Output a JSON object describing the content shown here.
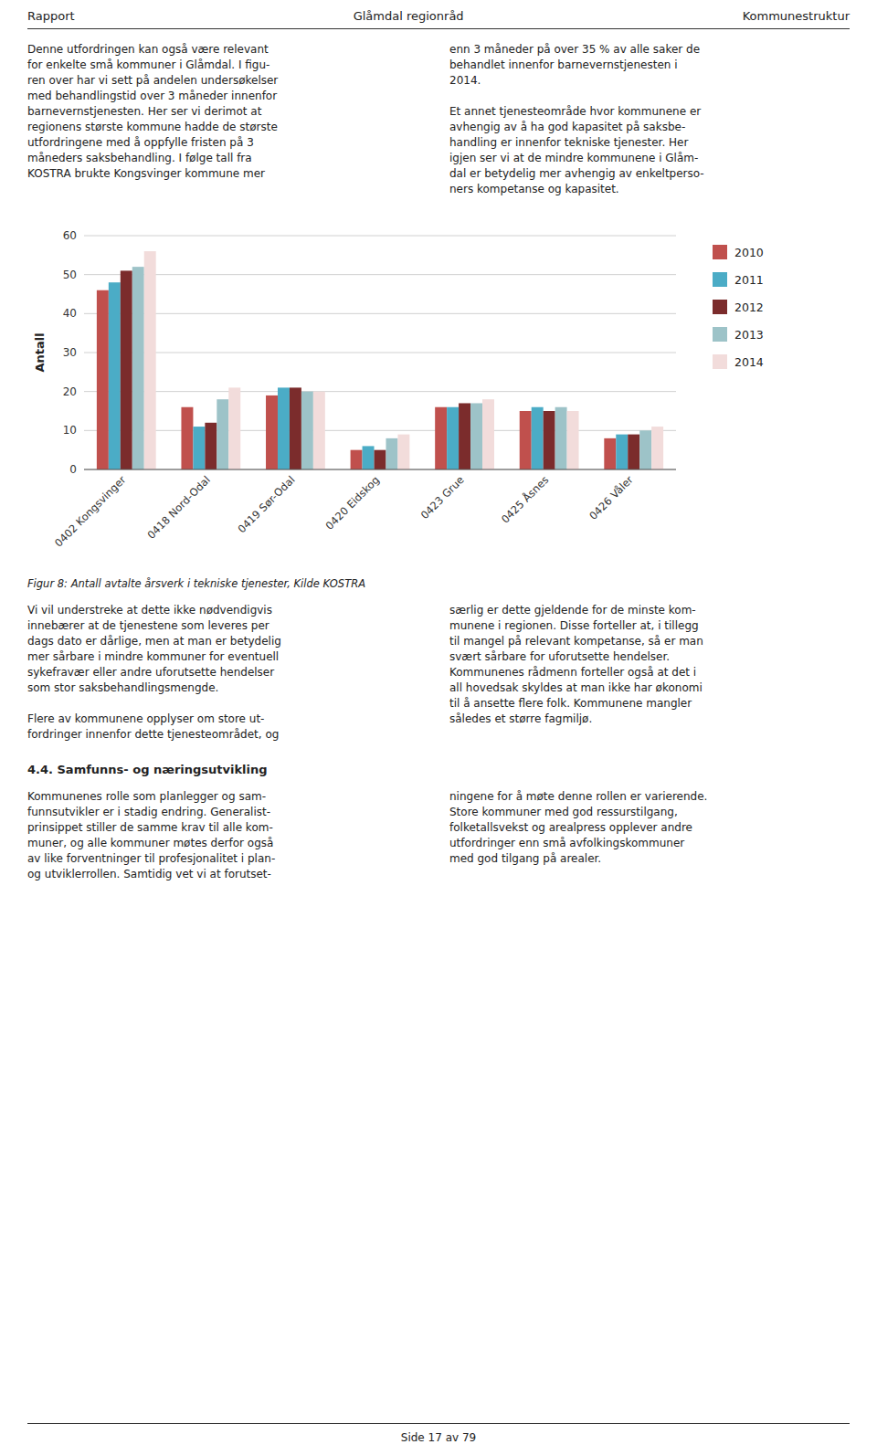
{
  "page": {
    "header": [
      "Rapport",
      "Glåmdal regionråd",
      "Kommunestruktur"
    ],
    "intro": {
      "left": [
        [
          "Denne utfordringen kan også være relevant",
          "for enkelte små kommuner i Glåmdal. I figu-",
          "ren over har vi sett på andelen undersøkelser",
          "med behandlingstid over 3 måneder innenfor",
          "barnevernstjenesten. Her ser vi derimot at",
          "regionens største kommune hadde de største",
          "utfordringene med å oppfylle fristen på 3",
          "måneders saksbehandling. I følge tall fra",
          "KOSTRA brukte Kongsvinger kommune mer"
        ]
      ],
      "right": [
        [
          "enn 3 måneder på over 35 % av alle saker de",
          "behandlet innenfor barnevernstjenesten i",
          "2014."
        ],
        [
          "Et annet tjenesteområde hvor kommunene er",
          "avhengig av å ha god kapasitet på saksbe-",
          "handling er innenfor tekniske tjenester. Her",
          "igjen ser vi at de mindre kommunene i Glåm-",
          "dal er betydelig mer avhengig av enkeltperso-",
          "ners kompetanse og kapasitet."
        ]
      ]
    },
    "body": {
      "left": [
        [
          "Vi vil understreke at dette ikke nødvendigvis",
          "innebærer at de tjenestene som leveres per",
          "dags dato er dårlige, men at man er betydelig",
          "mer sårbare i mindre kommuner for eventuell",
          "sykefravær eller andre uforutsette hendelser",
          "som stor saksbehandlingsmengde."
        ],
        [
          "Flere av kommunene opplyser om store ut-",
          "fordringer innenfor dette tjenesteområdet, og"
        ]
      ],
      "right": [
        [
          "særlig er dette gjeldende for de minste kom-",
          "munene i regionen. Disse forteller at, i tillegg",
          "til mangel på relevant kompetanse, så er man",
          "svært sårbare for uforutsette hendelser.",
          "Kommunenes rådmenn forteller også at det i",
          "all hovedsak skyldes at man ikke har økonomi",
          "til å ansette flere folk. Kommunene mangler",
          "således et større fagmiljø."
        ]
      ]
    },
    "section_title": "4.4.    Samfunns- og næringsutvikling",
    "section": {
      "left": [
        [
          "Kommunenes rolle som planlegger og sam-",
          "funnsutvikler er i stadig endring. Generalist-",
          "prinsippet stiller de samme krav til alle kom-",
          "muner, og alle kommuner møtes derfor også",
          "av like forventninger til profesjonalitet i plan-",
          "og utviklerrollen. Samtidig vet vi at forutset-"
        ]
      ],
      "right": [
        [
          "ningene for å møte denne rollen er varierende.",
          "Store kommuner med god ressurstilgang,",
          "folketallsvekst og arealpress opplever andre",
          "utfordringer enn små avfolkingskommuner",
          "med god tilgang på arealer."
        ]
      ]
    },
    "footer": "Side 17 av 79"
  },
  "chart_data": {
    "type": "bar",
    "title": "Figur 8: Antall avtalte årsverk i tekniske tjenester, Kilde KOSTRA",
    "y_label": "Antall",
    "categories": [
      "0402 Kongsvinger",
      "0418 Nord-Odal",
      "0419 Sør-Odal",
      "0420 Eidskog",
      "0423 Grue",
      "0425 Åsnes",
      "0426 Våler"
    ],
    "series": [
      {
        "name": "2010",
        "color": "#C0504D",
        "values": [
          46,
          16,
          19,
          5,
          16,
          15,
          8
        ]
      },
      {
        "name": "2011",
        "color": "#4BACC6",
        "values": [
          48,
          11,
          21,
          6,
          16,
          16,
          9
        ]
      },
      {
        "name": "2012",
        "color": "#7B2C2C",
        "values": [
          51,
          12,
          21,
          5,
          17,
          15,
          9
        ]
      },
      {
        "name": "2013",
        "color": "#9DC3C8",
        "values": [
          52,
          18,
          20,
          8,
          17,
          16,
          10
        ]
      },
      {
        "name": "2014",
        "color": "#F2DCDB",
        "values": [
          56,
          21,
          20,
          9,
          18,
          15,
          11
        ]
      }
    ],
    "ylim": [
      0,
      60
    ],
    "yticks": [
      0,
      10,
      20,
      30,
      40,
      50,
      60
    ],
    "grid": true,
    "legend": "right"
  }
}
